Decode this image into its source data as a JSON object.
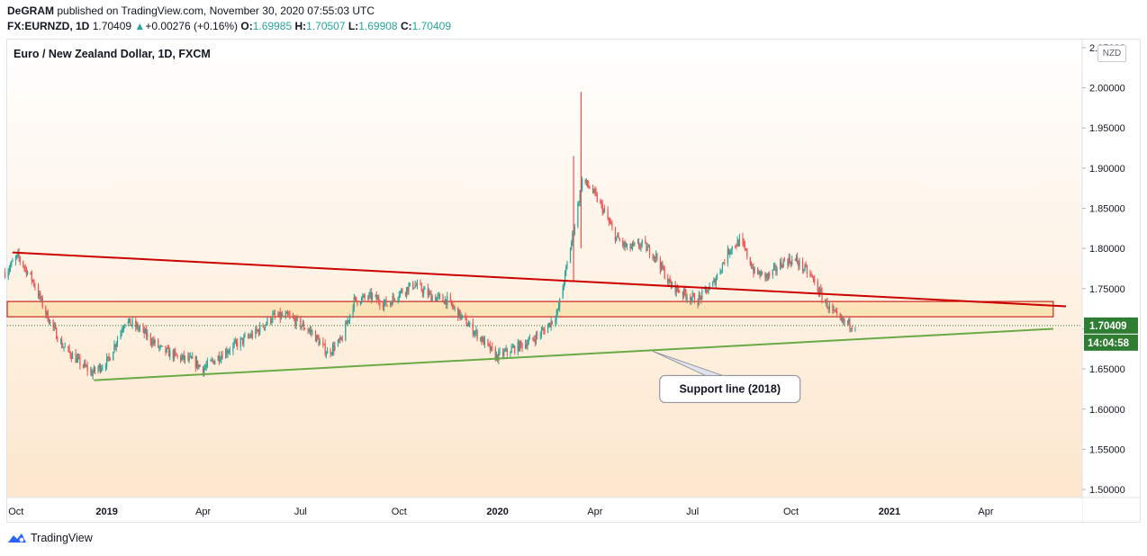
{
  "header": {
    "author": "DeGRAM",
    "published_text": "published on TradingView.com, November 30, 2020 07:55:03 UTC",
    "symbol": "FX:EURNZD, 1D",
    "last": "1.70409",
    "change": "+0.00276 (+0.16%)",
    "o_label": "O:",
    "o_value": "1.69985",
    "h_label": "H:",
    "h_value": "1.70507",
    "l_label": "L:",
    "l_value": "1.69908",
    "c_label": "C:",
    "c_value": "1.70409"
  },
  "chart_title": "Euro / New Zealand Dollar, 1D, FXCM",
  "currency_badge": "NZD",
  "footer": {
    "brand": "TradingView"
  },
  "colors": {
    "resistance": "#cc0000",
    "support": "#6aaa46",
    "zone_fill": "#fde4b8",
    "zone_border": "#c00000",
    "bull": "#26a69a",
    "bear": "#ef5350",
    "last_price_bg": "#2e7d32"
  },
  "chart_data": {
    "type": "candlestick",
    "instrument": "EURNZD",
    "timeframe": "1D",
    "y_ticks": [
      "2.05000",
      "2.00000",
      "1.95000",
      "1.90000",
      "1.85000",
      "1.80000",
      "1.75000",
      "1.70000",
      "1.65000",
      "1.60000",
      "1.55000",
      "1.50000"
    ],
    "ylim": [
      1.49,
      2.06
    ],
    "x_ticks": [
      "Oct",
      "2019",
      "Apr",
      "Jul",
      "Oct",
      "2020",
      "Apr",
      "Jul",
      "Oct",
      "2021",
      "Apr"
    ],
    "x_tick_dates": [
      "2018-10-01",
      "2019-01-01",
      "2019-04-01",
      "2019-07-01",
      "2019-10-01",
      "2020-01-01",
      "2020-04-01",
      "2020-07-01",
      "2020-10-01",
      "2021-01-01",
      "2021-04-01"
    ],
    "xlim": [
      "2018-09-30",
      "2021-06-30"
    ],
    "price_path": [
      [
        "2018-09-28",
        1.77
      ],
      [
        "2018-10-10",
        1.79
      ],
      [
        "2018-10-24",
        1.76
      ],
      [
        "2018-11-05",
        1.72
      ],
      [
        "2018-11-20",
        1.68
      ],
      [
        "2018-12-05",
        1.66
      ],
      [
        "2018-12-18",
        1.645
      ],
      [
        "2019-01-02",
        1.66
      ],
      [
        "2019-01-18",
        1.71
      ],
      [
        "2019-02-01",
        1.7
      ],
      [
        "2019-02-20",
        1.675
      ],
      [
        "2019-03-08",
        1.665
      ],
      [
        "2019-03-22",
        1.66
      ],
      [
        "2019-04-01",
        1.65
      ],
      [
        "2019-04-15",
        1.665
      ],
      [
        "2019-05-01",
        1.68
      ],
      [
        "2019-05-20",
        1.695
      ],
      [
        "2019-06-05",
        1.715
      ],
      [
        "2019-06-20",
        1.715
      ],
      [
        "2019-07-01",
        1.705
      ],
      [
        "2019-07-12",
        1.695
      ],
      [
        "2019-07-26",
        1.67
      ],
      [
        "2019-08-08",
        1.685
      ],
      [
        "2019-08-20",
        1.735
      ],
      [
        "2019-09-05",
        1.74
      ],
      [
        "2019-09-20",
        1.73
      ],
      [
        "2019-10-01",
        1.745
      ],
      [
        "2019-10-15",
        1.755
      ],
      [
        "2019-11-01",
        1.74
      ],
      [
        "2019-11-15",
        1.735
      ],
      [
        "2019-12-01",
        1.71
      ],
      [
        "2019-12-15",
        1.69
      ],
      [
        "2019-12-31",
        1.665
      ],
      [
        "2020-01-15",
        1.675
      ],
      [
        "2020-02-01",
        1.685
      ],
      [
        "2020-02-15",
        1.7
      ],
      [
        "2020-02-26",
        1.72
      ],
      [
        "2020-03-06",
        1.78
      ],
      [
        "2020-03-13",
        1.83
      ],
      [
        "2020-03-20",
        1.885
      ],
      [
        "2020-03-28",
        1.875
      ],
      [
        "2020-04-08",
        1.85
      ],
      [
        "2020-04-20",
        1.815
      ],
      [
        "2020-05-01",
        1.8
      ],
      [
        "2020-05-15",
        1.805
      ],
      [
        "2020-05-28",
        1.79
      ],
      [
        "2020-06-10",
        1.755
      ],
      [
        "2020-06-22",
        1.745
      ],
      [
        "2020-07-05",
        1.735
      ],
      [
        "2020-07-20",
        1.755
      ],
      [
        "2020-08-05",
        1.8
      ],
      [
        "2020-08-15",
        1.81
      ],
      [
        "2020-08-28",
        1.77
      ],
      [
        "2020-09-10",
        1.765
      ],
      [
        "2020-09-25",
        1.785
      ],
      [
        "2020-10-06",
        1.785
      ],
      [
        "2020-10-20",
        1.765
      ],
      [
        "2020-11-01",
        1.735
      ],
      [
        "2020-11-15",
        1.71
      ],
      [
        "2020-11-30",
        1.70409
      ]
    ],
    "spikes": [
      {
        "date": "2020-03-19",
        "high": 1.995,
        "low": 1.8
      },
      {
        "date": "2020-03-12",
        "high": 1.915,
        "low": 1.76
      }
    ],
    "resistance_line": {
      "name": "",
      "from": [
        "2018-10-05",
        1.795
      ],
      "to": [
        "2021-06-15",
        1.728
      ]
    },
    "support_line": {
      "name": "Support line (2018)",
      "from": [
        "2018-12-20",
        1.636
      ],
      "to": [
        "2021-06-03",
        1.7
      ]
    },
    "zone": {
      "from": "2018-09-30",
      "to": "2021-06-03",
      "y_top": 1.734,
      "y_bottom": 1.715
    },
    "last_price": "1.70409",
    "countdown": "14:04:58",
    "annotation": "Support line (2018)"
  }
}
